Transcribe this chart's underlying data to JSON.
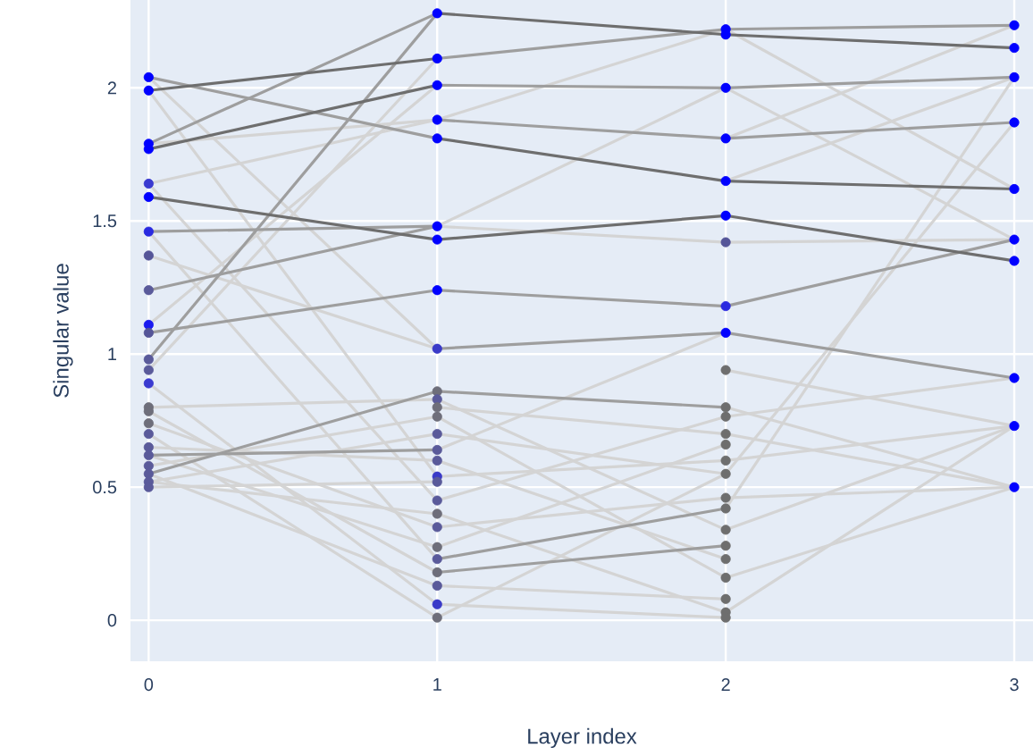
{
  "chart_data": {
    "type": "line",
    "xlabel": "Layer index",
    "ylabel": "Singular value",
    "xlim": [
      -0.063,
      3.065
    ],
    "ylim": [
      -0.154,
      2.33
    ],
    "xticks": [
      0,
      1,
      2,
      3
    ],
    "yticks": [
      0,
      0.5,
      1,
      1.5,
      2
    ],
    "grid": true,
    "series": [
      {
        "x": [
          0,
          1
        ],
        "values": [
          2.04,
          1.02
        ],
        "color": "#d4d4d4"
      },
      {
        "x": [
          0,
          1
        ],
        "values": [
          1.99,
          0.54
        ],
        "color": "#d4d4d4"
      },
      {
        "x": [
          0,
          1
        ],
        "values": [
          1.79,
          1.88
        ],
        "color": "#d4d4d4"
      },
      {
        "x": [
          0,
          1
        ],
        "values": [
          1.64,
          1.88
        ],
        "color": "#d4d4d4"
      },
      {
        "x": [
          0,
          1
        ],
        "values": [
          1.64,
          0.45
        ],
        "color": "#d4d4d4"
      },
      {
        "x": [
          0,
          1
        ],
        "values": [
          1.46,
          0.23
        ],
        "color": "#d4d4d4"
      },
      {
        "x": [
          0,
          1
        ],
        "values": [
          1.37,
          1.02
        ],
        "color": "#d4d4d4"
      },
      {
        "x": [
          0,
          1
        ],
        "values": [
          1.11,
          2.01
        ],
        "color": "#d4d4d4"
      },
      {
        "x": [
          0,
          1
        ],
        "values": [
          0.94,
          2.11
        ],
        "color": "#d4d4d4"
      },
      {
        "x": [
          0,
          1
        ],
        "values": [
          0.89,
          0.06
        ],
        "color": "#d4d4d4"
      },
      {
        "x": [
          0,
          1
        ],
        "values": [
          0.8,
          0.83
        ],
        "color": "#d4d4d4"
      },
      {
        "x": [
          0,
          1
        ],
        "values": [
          0.785,
          0.18
        ],
        "color": "#d4d4d4"
      },
      {
        "x": [
          0,
          1
        ],
        "values": [
          0.74,
          0.35
        ],
        "color": "#d4d4d4"
      },
      {
        "x": [
          0,
          1
        ],
        "values": [
          0.7,
          0.01
        ],
        "color": "#d4d4d4"
      },
      {
        "x": [
          0,
          1
        ],
        "values": [
          0.65,
          0.6
        ],
        "color": "#d4d4d4"
      },
      {
        "x": [
          0,
          1
        ],
        "values": [
          0.62,
          0.275
        ],
        "color": "#d4d4d4"
      },
      {
        "x": [
          0,
          1
        ],
        "values": [
          0.58,
          0.765
        ],
        "color": "#d4d4d4"
      },
      {
        "x": [
          0,
          1
        ],
        "values": [
          0.55,
          0.13
        ],
        "color": "#d4d4d4"
      },
      {
        "x": [
          0,
          1
        ],
        "values": [
          0.52,
          0.4
        ],
        "color": "#d4d4d4"
      },
      {
        "x": [
          0,
          1
        ],
        "values": [
          0.5,
          0.52
        ],
        "color": "#d4d4d4"
      },
      {
        "x": [
          0,
          1
        ],
        "values": [
          0.52,
          0.7
        ],
        "color": "#d4d4d4"
      },
      {
        "x": [
          1,
          2
        ],
        "values": [
          1.48,
          1.42
        ],
        "color": "#d4d4d4"
      },
      {
        "x": [
          1,
          2
        ],
        "values": [
          1.88,
          2.22
        ],
        "color": "#d4d4d4"
      },
      {
        "x": [
          1,
          2
        ],
        "values": [
          1.48,
          2.0
        ],
        "color": "#d4d4d4"
      },
      {
        "x": [
          1,
          2
        ],
        "values": [
          0.83,
          0.34
        ],
        "color": "#d4d4d4"
      },
      {
        "x": [
          1,
          2
        ],
        "values": [
          0.8,
          0.7
        ],
        "color": "#d4d4d4"
      },
      {
        "x": [
          1,
          2
        ],
        "values": [
          0.765,
          0.16
        ],
        "color": "#d4d4d4"
      },
      {
        "x": [
          1,
          2
        ],
        "values": [
          0.7,
          0.55
        ],
        "color": "#d4d4d4"
      },
      {
        "x": [
          1,
          2
        ],
        "values": [
          0.64,
          1.08
        ],
        "color": "#d4d4d4"
      },
      {
        "x": [
          1,
          2
        ],
        "values": [
          0.6,
          0.23
        ],
        "color": "#d4d4d4"
      },
      {
        "x": [
          1,
          2
        ],
        "values": [
          0.54,
          0.6
        ],
        "color": "#d4d4d4"
      },
      {
        "x": [
          1,
          2
        ],
        "values": [
          0.45,
          0.765
        ],
        "color": "#d4d4d4"
      },
      {
        "x": [
          1,
          2
        ],
        "values": [
          0.4,
          0.03
        ],
        "color": "#d4d4d4"
      },
      {
        "x": [
          1,
          2
        ],
        "values": [
          0.35,
          0.46
        ],
        "color": "#d4d4d4"
      },
      {
        "x": [
          1,
          2
        ],
        "values": [
          0.275,
          0.66
        ],
        "color": "#d4d4d4"
      },
      {
        "x": [
          1,
          2
        ],
        "values": [
          0.13,
          0.08
        ],
        "color": "#d4d4d4"
      },
      {
        "x": [
          1,
          2
        ],
        "values": [
          0.06,
          0.01
        ],
        "color": "#d4d4d4"
      },
      {
        "x": [
          1,
          2
        ],
        "values": [
          0.01,
          0.55
        ],
        "color": "#d4d4d4"
      },
      {
        "x": [
          2,
          3
        ],
        "values": [
          1.42,
          1.43
        ],
        "color": "#d4d4d4"
      },
      {
        "x": [
          2,
          3
        ],
        "values": [
          1.65,
          2.04
        ],
        "color": "#d4d4d4"
      },
      {
        "x": [
          2,
          3
        ],
        "values": [
          1.81,
          2.235
        ],
        "color": "#d4d4d4"
      },
      {
        "x": [
          2,
          3
        ],
        "values": [
          2.0,
          1.43
        ],
        "color": "#d4d4d4"
      },
      {
        "x": [
          2,
          3
        ],
        "values": [
          2.22,
          1.62
        ],
        "color": "#d4d4d4"
      },
      {
        "x": [
          2,
          3
        ],
        "values": [
          0.94,
          0.73
        ],
        "color": "#d4d4d4"
      },
      {
        "x": [
          2,
          3
        ],
        "values": [
          0.8,
          0.5
        ],
        "color": "#d4d4d4"
      },
      {
        "x": [
          2,
          3
        ],
        "values": [
          0.765,
          0.91
        ],
        "color": "#d4d4d4"
      },
      {
        "x": [
          2,
          3
        ],
        "values": [
          0.7,
          0.5
        ],
        "color": "#d4d4d4"
      },
      {
        "x": [
          2,
          3
        ],
        "values": [
          0.6,
          0.73
        ],
        "color": "#d4d4d4"
      },
      {
        "x": [
          2,
          3
        ],
        "values": [
          0.46,
          0.5
        ],
        "color": "#d4d4d4"
      },
      {
        "x": [
          2,
          3
        ],
        "values": [
          0.34,
          0.73
        ],
        "color": "#d4d4d4"
      },
      {
        "x": [
          2,
          3
        ],
        "values": [
          0.16,
          0.5
        ],
        "color": "#d4d4d4"
      },
      {
        "x": [
          2,
          3
        ],
        "values": [
          0.03,
          0.73
        ],
        "color": "#d4d4d4"
      },
      {
        "x": [
          2,
          3
        ],
        "values": [
          0.55,
          1.87
        ],
        "color": "#d4d4d4"
      },
      {
        "x": [
          2,
          3
        ],
        "values": [
          0.42,
          2.04
        ],
        "color": "#d4d4d4"
      },
      {
        "x": [
          0,
          1
        ],
        "values": [
          2.04,
          1.81
        ],
        "color": "#9e9e9e"
      },
      {
        "x": [
          0,
          1
        ],
        "values": [
          1.79,
          2.28
        ],
        "color": "#9e9e9e"
      },
      {
        "x": [
          0,
          1
        ],
        "values": [
          1.08,
          1.24
        ],
        "color": "#9e9e9e"
      },
      {
        "x": [
          0,
          1
        ],
        "values": [
          1.46,
          1.48
        ],
        "color": "#9e9e9e"
      },
      {
        "x": [
          0,
          1
        ],
        "values": [
          1.24,
          1.48
        ],
        "color": "#9e9e9e"
      },
      {
        "x": [
          0,
          1
        ],
        "values": [
          0.98,
          2.28
        ],
        "color": "#9e9e9e"
      },
      {
        "x": [
          0,
          1
        ],
        "values": [
          0.55,
          0.86
        ],
        "color": "#9e9e9e"
      },
      {
        "x": [
          0,
          1
        ],
        "values": [
          0.62,
          0.64
        ],
        "color": "#9e9e9e"
      },
      {
        "x": [
          1,
          2
        ],
        "values": [
          2.11,
          2.22
        ],
        "color": "#9e9e9e"
      },
      {
        "x": [
          1,
          2
        ],
        "values": [
          2.01,
          2.0
        ],
        "color": "#9e9e9e"
      },
      {
        "x": [
          1,
          2
        ],
        "values": [
          1.88,
          1.81
        ],
        "color": "#9e9e9e"
      },
      {
        "x": [
          1,
          2
        ],
        "values": [
          1.24,
          1.18
        ],
        "color": "#9e9e9e"
      },
      {
        "x": [
          1,
          2
        ],
        "values": [
          1.02,
          1.08
        ],
        "color": "#9e9e9e"
      },
      {
        "x": [
          1,
          2
        ],
        "values": [
          0.86,
          0.8
        ],
        "color": "#9e9e9e"
      },
      {
        "x": [
          1,
          2
        ],
        "values": [
          0.23,
          0.42
        ],
        "color": "#9e9e9e"
      },
      {
        "x": [
          1,
          2
        ],
        "values": [
          0.18,
          0.28
        ],
        "color": "#9e9e9e"
      },
      {
        "x": [
          2,
          3
        ],
        "values": [
          2.22,
          2.235
        ],
        "color": "#9e9e9e"
      },
      {
        "x": [
          2,
          3
        ],
        "values": [
          2.0,
          2.04
        ],
        "color": "#9e9e9e"
      },
      {
        "x": [
          2,
          3
        ],
        "values": [
          1.81,
          1.87
        ],
        "color": "#9e9e9e"
      },
      {
        "x": [
          2,
          3
        ],
        "values": [
          1.18,
          1.43
        ],
        "color": "#9e9e9e"
      },
      {
        "x": [
          2,
          3
        ],
        "values": [
          1.08,
          0.91
        ],
        "color": "#9e9e9e"
      },
      {
        "x": [
          0,
          1
        ],
        "values": [
          1.99,
          2.11
        ],
        "color": "#6e6e6e"
      },
      {
        "x": [
          0,
          1
        ],
        "values": [
          1.77,
          2.01
        ],
        "color": "#6e6e6e"
      },
      {
        "x": [
          0,
          1
        ],
        "values": [
          1.59,
          1.43
        ],
        "color": "#6e6e6e"
      },
      {
        "x": [
          1,
          2
        ],
        "values": [
          2.28,
          2.2
        ],
        "color": "#6e6e6e"
      },
      {
        "x": [
          1,
          2
        ],
        "values": [
          1.81,
          1.65
        ],
        "color": "#6e6e6e"
      },
      {
        "x": [
          1,
          2
        ],
        "values": [
          1.43,
          1.52
        ],
        "color": "#6e6e6e"
      },
      {
        "x": [
          2,
          3
        ],
        "values": [
          2.2,
          2.15
        ],
        "color": "#6e6e6e"
      },
      {
        "x": [
          2,
          3
        ],
        "values": [
          1.65,
          1.62
        ],
        "color": "#6e6e6e"
      },
      {
        "x": [
          2,
          3
        ],
        "values": [
          1.52,
          1.35
        ],
        "color": "#6e6e6e"
      },
      {
        "type": "scatter",
        "marker": "circle",
        "x": [
          0,
          0,
          0,
          0,
          0,
          0,
          0,
          0,
          0,
          0,
          0,
          0,
          0,
          0,
          0,
          0,
          0,
          0,
          0,
          0,
          0,
          0,
          0,
          0
        ],
        "values": [
          2.04,
          1.99,
          1.79,
          1.77,
          1.64,
          1.59,
          1.46,
          1.37,
          1.24,
          1.11,
          1.08,
          0.98,
          0.94,
          0.89,
          0.8,
          0.785,
          0.74,
          0.7,
          0.65,
          0.62,
          0.58,
          0.55,
          0.52,
          0.5
        ],
        "colors": [
          "#0000ff",
          "#0000ff",
          "#0000ff",
          "#0000ff",
          "#3a3ad0",
          "#0000ff",
          "#2a2ae0",
          "#555598",
          "#5a5a9a",
          "#1a1af0",
          "#555598",
          "#5a5a9a",
          "#5a5a9a",
          "#3a3ad0",
          "#6e6e7a",
          "#6e6e7a",
          "#6e6e7a",
          "#5a5a9a",
          "#5a5a9a",
          "#5a5a9a",
          "#5a5a9a",
          "#5a5a9a",
          "#5a5a9a",
          "#5a5a9a"
        ]
      },
      {
        "type": "scatter",
        "marker": "circle",
        "x": [
          1,
          1,
          1,
          1,
          1,
          1,
          1,
          1,
          1,
          1,
          1,
          1,
          1,
          1,
          1,
          1,
          1,
          1,
          1,
          1,
          1,
          1,
          1,
          1,
          1,
          1,
          1
        ],
        "values": [
          2.28,
          2.11,
          2.01,
          1.88,
          1.81,
          1.48,
          1.43,
          1.24,
          1.02,
          0.86,
          0.83,
          0.8,
          0.765,
          0.7,
          0.64,
          0.6,
          0.54,
          0.52,
          0.45,
          0.4,
          0.35,
          0.275,
          0.23,
          0.18,
          0.13,
          0.06,
          0.01
        ],
        "colors": [
          "#0000ff",
          "#0000ff",
          "#0000ff",
          "#0000ff",
          "#0000ff",
          "#0000ff",
          "#0000ff",
          "#0000ff",
          "#3a3ac8",
          "#6e6e7a",
          "#5a5a9a",
          "#6e6e7a",
          "#6e6e7a",
          "#5a5a9a",
          "#5a5a9a",
          "#5a5a9a",
          "#3a3ac8",
          "#5a5a9a",
          "#5a5a9a",
          "#6e6e7a",
          "#5a5a9a",
          "#6e6e7a",
          "#5a5a9a",
          "#6e6e7a",
          "#5a5a9a",
          "#3a3ac8",
          "#6e6e7a"
        ]
      },
      {
        "type": "scatter",
        "marker": "circle",
        "x": [
          2,
          2,
          2,
          2,
          2,
          2,
          2,
          2,
          2,
          2,
          2,
          2,
          2,
          2,
          2,
          2,
          2,
          2,
          2,
          2,
          2,
          2,
          2,
          2,
          2
        ],
        "values": [
          2.22,
          2.2,
          2.0,
          1.81,
          1.65,
          1.52,
          1.42,
          1.18,
          1.08,
          0.94,
          0.8,
          0.765,
          0.7,
          0.66,
          0.6,
          0.55,
          0.46,
          0.42,
          0.34,
          0.28,
          0.23,
          0.16,
          0.08,
          0.03,
          0.01
        ],
        "colors": [
          "#0000ff",
          "#0000ff",
          "#0000ff",
          "#0000ff",
          "#0000ff",
          "#0000ff",
          "#555598",
          "#2a2ae0",
          "#0000ff",
          "#6e6e6e",
          "#6e6e6e",
          "#6e6e6e",
          "#6e6e6e",
          "#6e6e6e",
          "#6e6e6e",
          "#6e6e6e",
          "#6e6e6e",
          "#6e6e6e",
          "#6e6e6e",
          "#6e6e6e",
          "#6e6e6e",
          "#6e6e6e",
          "#6e6e6e",
          "#6e6e6e",
          "#6e6e6e"
        ]
      },
      {
        "type": "scatter",
        "marker": "circle",
        "x": [
          3,
          3,
          3,
          3,
          3,
          3,
          3,
          3,
          3,
          3
        ],
        "values": [
          2.235,
          2.15,
          2.04,
          1.87,
          1.62,
          1.43,
          1.35,
          0.91,
          0.73,
          0.5
        ],
        "colors": [
          "#0000ff",
          "#0000ff",
          "#0000ff",
          "#0000ff",
          "#0000ff",
          "#0000ff",
          "#0000ff",
          "#0000ff",
          "#0000ff",
          "#0000ff"
        ]
      }
    ]
  }
}
